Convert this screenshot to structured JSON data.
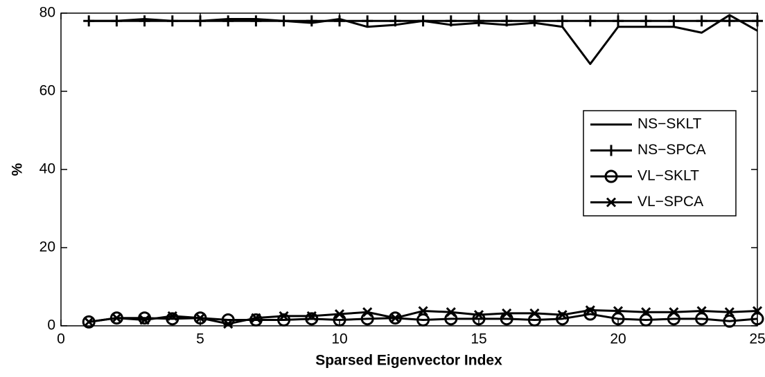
{
  "chart_data": {
    "type": "line",
    "xlabel": "Sparsed Eigenvector Index",
    "ylabel": "%",
    "x": [
      1,
      2,
      3,
      4,
      5,
      6,
      7,
      8,
      9,
      10,
      11,
      12,
      13,
      14,
      15,
      16,
      17,
      18,
      19,
      20,
      21,
      22,
      23,
      24,
      25
    ],
    "series": [
      {
        "name": "NS−SKLT",
        "color": "#000000",
        "marker": "none",
        "values": [
          78,
          78,
          78.5,
          78,
          78,
          78.5,
          78.5,
          78,
          77.5,
          78.5,
          76.5,
          77,
          78,
          77,
          77.5,
          77,
          77.5,
          76.5,
          67,
          76.5,
          76.5,
          76.5,
          75,
          79.5,
          75.5
        ]
      },
      {
        "name": "NS−SPCA",
        "color": "#000000",
        "marker": "plus",
        "values": [
          78,
          78,
          78,
          78,
          78,
          78,
          78,
          78,
          78,
          78,
          78,
          78,
          78,
          78,
          78,
          78,
          78,
          78,
          78,
          78,
          78,
          78,
          78,
          78,
          78
        ]
      },
      {
        "name": "VL−SKLT",
        "color": "#000000",
        "marker": "circle",
        "values": [
          1,
          2,
          2,
          1.8,
          2,
          1.5,
          1.5,
          1.5,
          1.8,
          1.5,
          1.8,
          2,
          1.5,
          1.8,
          1.8,
          1.8,
          1.5,
          1.8,
          3,
          1.8,
          1.5,
          1.8,
          1.8,
          1.2,
          1.8
        ]
      },
      {
        "name": "VL−SPCA",
        "color": "#000000",
        "marker": "x",
        "values": [
          1,
          2,
          1.5,
          2.5,
          2,
          0.5,
          2,
          2.5,
          2.5,
          3,
          3.5,
          2,
          3.8,
          3.5,
          2.8,
          3.2,
          3.2,
          2.8,
          4,
          3.8,
          3.5,
          3.5,
          3.8,
          3.5,
          3.8
        ]
      }
    ],
    "xlim": [
      0,
      25
    ],
    "xticks": [
      0,
      5,
      10,
      15,
      20,
      25
    ],
    "ylim": [
      0,
      80
    ],
    "yticks": [
      0,
      20,
      40,
      60,
      80
    ],
    "grid": false,
    "legend": "right"
  }
}
